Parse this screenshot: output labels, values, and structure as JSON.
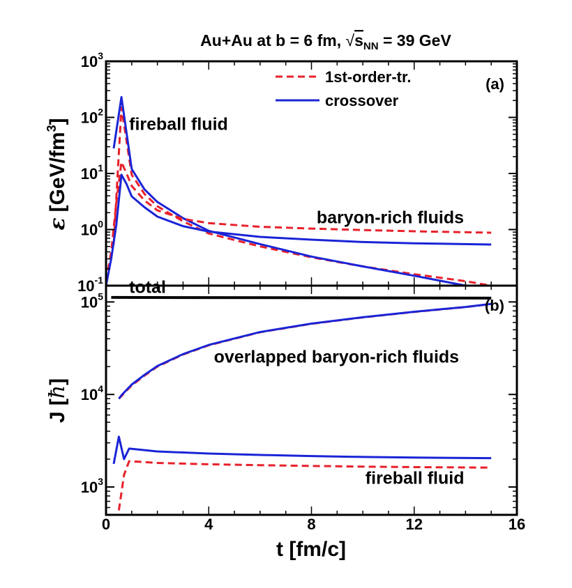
{
  "chart_data": {
    "type": "line",
    "title": "Au+Au at b = 6 fm, √s_NN = 39 GeV",
    "title_parts": {
      "main": "Au+Au at b = 6 fm, ",
      "sqrt": "√",
      "s": "s",
      "sub": "NN",
      "tail": " = 39 GeV"
    },
    "xlabel": "t [fm/c]",
    "xlim": [
      0,
      16
    ],
    "xticks": [
      "0",
      "4",
      "8",
      "12",
      "16"
    ],
    "colors": {
      "first_order": "#e8202a",
      "crossover": "#1a24d6",
      "total": "#000000"
    },
    "legend": {
      "placement": "top-center",
      "entries": [
        {
          "label": "1st-order-tr.",
          "style": "dashed",
          "color": "#e8202a"
        },
        {
          "label": "crossover",
          "style": "solid",
          "color": "#1a24d6"
        }
      ]
    },
    "panels": [
      {
        "tag": "(a)",
        "ylabel_symbol": "ε",
        "ylabel_unit": "[GeV/fm",
        "ylabel_exp": "3",
        "ylabel_close": "]",
        "yscale": "log",
        "ylim": [
          0.1,
          1000
        ],
        "yticks": [
          {
            "base": "10",
            "exp": "-1",
            "value": 0.1
          },
          {
            "base": "10",
            "exp": "0",
            "value": 1
          },
          {
            "base": "10",
            "exp": "1",
            "value": 10
          },
          {
            "base": "10",
            "exp": "2",
            "value": 100
          },
          {
            "base": "10",
            "exp": "3",
            "value": 1000
          }
        ],
        "annotations": [
          {
            "text": "fireball fluid",
            "x": 0.9,
            "y": 60
          },
          {
            "text": "baryon-rich fluids",
            "x": 8.2,
            "y": 1.3
          }
        ],
        "series": [
          {
            "style": "dashed",
            "color": "#e8202a",
            "x": [
              0.3,
              0.6,
              1.0,
              1.5,
              2.0,
              3.0,
              4.0,
              6.0,
              8.0,
              10.0,
              12.0,
              14.0,
              15.0
            ],
            "y": [
              0.55,
              150,
              9.5,
              4.3,
              2.6,
              1.4,
              0.85,
              0.5,
              0.32,
              0.22,
              0.16,
              0.12,
              0.1
            ]
          },
          {
            "style": "solid",
            "color": "#1a24d6",
            "x": [
              0.3,
              0.6,
              1.0,
              1.5,
              2.0,
              3.0,
              4.0,
              6.0,
              8.0,
              10.0,
              12.0,
              14.0
            ],
            "y": [
              28,
              230,
              12,
              5.2,
              3.1,
              1.6,
              0.95,
              0.55,
              0.33,
              0.22,
              0.15,
              0.1
            ]
          },
          {
            "style": "dashed",
            "color": "#e8202a",
            "x": [
              0.0,
              0.2,
              0.4,
              0.6,
              0.8,
              1.0,
              1.5,
              2.0,
              3.0,
              4.0,
              6.0,
              8.0,
              10.0,
              12.0,
              15.0
            ],
            "y": [
              0.12,
              0.4,
              3.0,
              16,
              10,
              6.0,
              3.3,
              2.2,
              1.55,
              1.3,
              1.12,
              1.04,
              0.98,
              0.93,
              0.88
            ]
          },
          {
            "style": "solid",
            "color": "#1a24d6",
            "x": [
              0.0,
              0.2,
              0.4,
              0.6,
              0.8,
              1.0,
              1.5,
              2.0,
              3.0,
              4.0,
              6.0,
              8.0,
              10.0,
              12.0,
              15.0
            ],
            "y": [
              0.1,
              0.3,
              1.2,
              9.5,
              6.5,
              3.9,
              2.5,
              1.7,
              1.15,
              0.92,
              0.74,
              0.66,
              0.6,
              0.57,
              0.54
            ]
          }
        ]
      },
      {
        "tag": "(b)",
        "ylabel_main": "J [",
        "ylabel_symbol": "ħ",
        "ylabel_close": "]",
        "yscale": "log",
        "ylim": [
          500,
          150000
        ],
        "yticks": [
          {
            "base": "10",
            "exp": "3",
            "value": 1000
          },
          {
            "base": "10",
            "exp": "4",
            "value": 10000
          },
          {
            "base": "10",
            "exp": "5",
            "value": 100000
          }
        ],
        "annotations": [
          {
            "text": "total",
            "x": 0.9,
            "y": 125000
          },
          {
            "text": "overlapped baryon-rich fluids",
            "x": 4.2,
            "y": 22000
          },
          {
            "text": "fireball fluid",
            "x": 10.1,
            "y": 1080
          }
        ],
        "series": [
          {
            "style": "solid",
            "color": "#000000",
            "x": [
              0.2,
              15.0
            ],
            "y": [
              112000,
              110000
            ]
          },
          {
            "style": "dashed",
            "color": "#e8202a",
            "x": [
              0.5,
              0.6,
              0.8,
              1.0,
              1.5,
              2.0,
              3.0,
              4.0,
              5.0,
              6.0,
              8.0,
              10.0,
              12.0,
              14.0,
              15.0
            ],
            "y": [
              9000,
              9600,
              11000,
              12500,
              16000,
              20000,
              27000,
              34000,
              40000,
              47000,
              58000,
              68000,
              78000,
              88000,
              95000
            ]
          },
          {
            "style": "solid",
            "color": "#1a24d6",
            "x": [
              0.5,
              0.6,
              0.8,
              1.0,
              1.5,
              2.0,
              3.0,
              4.0,
              5.0,
              6.0,
              8.0,
              10.0,
              12.0,
              14.0,
              15.0
            ],
            "y": [
              9000,
              9800,
              11200,
              12800,
              16300,
              20300,
              27300,
              34300,
              40300,
              47300,
              58300,
              68300,
              78300,
              88300,
              95000
            ]
          },
          {
            "style": "dashed",
            "color": "#e8202a",
            "x": [
              0.5,
              0.7,
              0.9,
              1.2,
              2.0,
              4.0,
              6.0,
              8.0,
              10.0,
              12.0,
              15.0
            ],
            "y": [
              560,
              1350,
              1900,
              1880,
              1820,
              1760,
              1720,
              1690,
              1660,
              1640,
              1620
            ]
          },
          {
            "style": "solid",
            "color": "#1a24d6",
            "x": [
              0.3,
              0.5,
              0.7,
              0.9,
              1.2,
              2.0,
              4.0,
              6.0,
              8.0,
              10.0,
              12.0,
              15.0
            ],
            "y": [
              1780,
              3500,
              2000,
              2600,
              2550,
              2420,
              2300,
              2220,
              2160,
              2110,
              2080,
              2050
            ]
          }
        ]
      }
    ]
  }
}
